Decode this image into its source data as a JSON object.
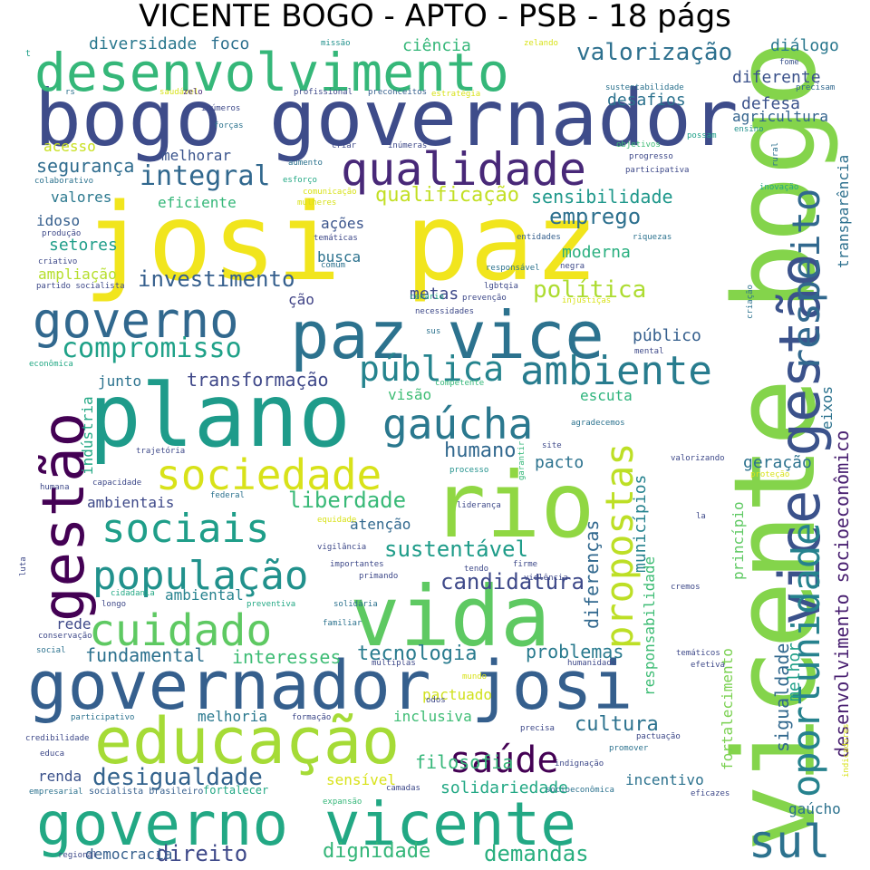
{
  "title": "VICENTE BOGO - APTO - PSB - 18 págs",
  "colormap": "viridis",
  "words": [
    {
      "text": "josi paz",
      "color": "#f1e51d"
    },
    {
      "text": "vicente bogo",
      "color": "#84d44b"
    },
    {
      "text": "bogo governador",
      "color": "#3e4c8a"
    },
    {
      "text": "plano",
      "color": "#1e9b8a"
    },
    {
      "text": "vida",
      "color": "#5ec962"
    },
    {
      "text": "governador josi",
      "color": "#355f8d"
    },
    {
      "text": "desenvolvimento",
      "color": "#35b779"
    },
    {
      "text": "paz vice",
      "color": "#2c728e"
    },
    {
      "text": "rio",
      "color": "#90d743"
    },
    {
      "text": "governo vicente",
      "color": "#22a884"
    },
    {
      "text": "educação",
      "color": "#a5db36"
    },
    {
      "text": "gestão",
      "color": "#440154"
    },
    {
      "text": "vice gestão",
      "color": "#3b528b"
    },
    {
      "text": "governo",
      "color": "#31688e"
    },
    {
      "text": "qualidade",
      "color": "#482878"
    },
    {
      "text": "sociedade",
      "color": "#d8e219"
    },
    {
      "text": "cuidado",
      "color": "#5ec962"
    },
    {
      "text": "população",
      "color": "#21918c"
    },
    {
      "text": "sociais",
      "color": "#1f9e89"
    },
    {
      "text": "gaúcha",
      "color": "#2a788e"
    },
    {
      "text": "ambiente",
      "color": "#287c8e"
    },
    {
      "text": "oportunidade",
      "color": "#26828e"
    },
    {
      "text": "respeito",
      "color": "#31688e"
    },
    {
      "text": "saúde",
      "color": "#440154"
    },
    {
      "text": "sul",
      "color": "#2c728e"
    },
    {
      "text": "propostas",
      "color": "#bddf26"
    },
    {
      "text": "pública",
      "color": "#25848e"
    },
    {
      "text": "compromisso",
      "color": "#1fa188"
    },
    {
      "text": "integral",
      "color": "#31688e"
    },
    {
      "text": "valorização",
      "color": "#2d708e"
    },
    {
      "text": "investimento",
      "color": "#355f8d"
    },
    {
      "text": "política",
      "color": "#addc30"
    },
    {
      "text": "sustentável",
      "color": "#1e9c89"
    },
    {
      "text": "desigualdade",
      "color": "#33638d"
    },
    {
      "text": "liberdade",
      "color": "#38b977"
    },
    {
      "text": "tecnologia",
      "color": "#297b8e"
    },
    {
      "text": "direito",
      "color": "#3e4989"
    },
    {
      "text": "demandas",
      "color": "#29af7f"
    },
    {
      "text": "dignidade",
      "color": "#34b679"
    },
    {
      "text": "fundamental",
      "color": "#2c718e"
    },
    {
      "text": "interesses",
      "color": "#3dbc74"
    },
    {
      "text": "problemas",
      "color": "#297a8e"
    },
    {
      "text": "cultura",
      "color": "#2c728e"
    },
    {
      "text": "filosofia",
      "color": "#35b779"
    },
    {
      "text": "humano",
      "color": "#31688e"
    },
    {
      "text": "emprego",
      "color": "#2d708e"
    },
    {
      "text": "qualificação",
      "color": "#c2df23"
    },
    {
      "text": "sensibilidade",
      "color": "#1f988b"
    },
    {
      "text": "segurança",
      "color": "#2f6c8e"
    },
    {
      "text": "transformação",
      "color": "#3f4889"
    },
    {
      "text": "sigualdade",
      "color": "#31688e"
    },
    {
      "text": "melhor",
      "color": "#1fa088"
    },
    {
      "text": "desenvolvimento socioeconômico",
      "color": "#481f70"
    },
    {
      "text": "municípios",
      "color": "#26828e"
    },
    {
      "text": "responsabilidade",
      "color": "#3dbc74"
    },
    {
      "text": "diferenças",
      "color": "#31688e"
    },
    {
      "text": "princípio",
      "color": "#5ec962"
    },
    {
      "text": "fortalecimento",
      "color": "#7ad151"
    },
    {
      "text": "transparência",
      "color": "#2d708e"
    },
    {
      "text": "indústria",
      "color": "#22a884"
    },
    {
      "text": "diversidade",
      "color": "#2a788e"
    },
    {
      "text": "ciência",
      "color": "#35b779"
    },
    {
      "text": "diálogo",
      "color": "#2a788e"
    },
    {
      "text": "diferente",
      "color": "#3b528b"
    },
    {
      "text": "desafios",
      "color": "#2c728e"
    },
    {
      "text": "defesa",
      "color": "#3b528b"
    },
    {
      "text": "agricultura",
      "color": "#33638d"
    },
    {
      "text": "foco",
      "color": "#2d708e"
    },
    {
      "text": "acesso",
      "color": "#c8e020"
    },
    {
      "text": "melhorar",
      "color": "#3a548c"
    },
    {
      "text": "valores",
      "color": "#2a788e"
    },
    {
      "text": "eficiente",
      "color": "#35b779"
    },
    {
      "text": "idoso",
      "color": "#355f8d"
    },
    {
      "text": "ações",
      "color": "#3a548c"
    },
    {
      "text": "setores",
      "color": "#1f9e89"
    },
    {
      "text": "busca",
      "color": "#2c728e"
    },
    {
      "text": "moderna",
      "color": "#29af7f"
    },
    {
      "text": "metas",
      "color": "#3e4989"
    },
    {
      "text": "público",
      "color": "#355f8d"
    },
    {
      "text": "junto",
      "color": "#2c728e"
    },
    {
      "text": "visão",
      "color": "#3dbc74"
    },
    {
      "text": "escuta",
      "color": "#2fb47c"
    },
    {
      "text": "pacto",
      "color": "#2c728e"
    },
    {
      "text": "geração",
      "color": "#2c728e"
    },
    {
      "text": "ambientais",
      "color": "#3e4989"
    },
    {
      "text": "atenção",
      "color": "#31688e"
    },
    {
      "text": "ambiental",
      "color": "#26828e"
    },
    {
      "text": "rede",
      "color": "#3e4989"
    },
    {
      "text": "melhoria",
      "color": "#2a788e"
    },
    {
      "text": "pactuado",
      "color": "#d0e11c"
    },
    {
      "text": "inclusiva",
      "color": "#3dbc74"
    },
    {
      "text": "solidariedade",
      "color": "#22a884"
    },
    {
      "text": "sensível",
      "color": "#d8e219"
    },
    {
      "text": "incentivo",
      "color": "#2c728e"
    },
    {
      "text": "democracia",
      "color": "#355f8d"
    },
    {
      "text": "renda",
      "color": "#3b528b"
    },
    {
      "text": "gaúcho",
      "color": "#2c728e"
    },
    {
      "text": "eixos",
      "color": "#2c728e"
    },
    {
      "text": "ampliação",
      "color": "#b5de2b"
    },
    {
      "text": "ção",
      "color": "#414487"
    },
    {
      "text": "fortalecer",
      "color": "#22a884"
    },
    {
      "text": "socialista brasileiro",
      "color": "#355f8d"
    },
    {
      "text": "candidatura",
      "color": "#3e4989"
    },
    {
      "text": "t",
      "color": "#1fa088"
    },
    {
      "text": "rs",
      "color": "#2c728e"
    },
    {
      "text": "saudável",
      "color": "#d8e219"
    },
    {
      "text": "zelo",
      "color": "#482878"
    },
    {
      "text": "profissional",
      "color": "#3e4989"
    },
    {
      "text": "preconceitos",
      "color": "#355f8d"
    },
    {
      "text": "estratégia",
      "color": "#d8e219"
    },
    {
      "text": "sustentabilidade",
      "color": "#2c728e"
    },
    {
      "text": "precisam",
      "color": "#31688e"
    },
    {
      "text": "fome",
      "color": "#3b528b"
    },
    {
      "text": "missão",
      "color": "#21918c"
    },
    {
      "text": "zelando",
      "color": "#d8e219"
    },
    {
      "text": "inúmeros",
      "color": "#3e4989"
    },
    {
      "text": "forças",
      "color": "#2c728e"
    },
    {
      "text": "possam",
      "color": "#1fa088"
    },
    {
      "text": "ensino",
      "color": "#21918c"
    },
    {
      "text": "objetivos",
      "color": "#3dbc74"
    },
    {
      "text": "progresso",
      "color": "#3e4989"
    },
    {
      "text": "rural",
      "color": "#2c728e"
    },
    {
      "text": "criar",
      "color": "#3e4989"
    },
    {
      "text": "inúmeras",
      "color": "#3e4989"
    },
    {
      "text": "aumento",
      "color": "#2c728e"
    },
    {
      "text": "esforço",
      "color": "#22a884"
    },
    {
      "text": "comunicação",
      "color": "#d8e219"
    },
    {
      "text": "mulheres",
      "color": "#d8e219"
    },
    {
      "text": "colaborativo",
      "color": "#2c728e"
    },
    {
      "text": "participativa",
      "color": "#3e4989"
    },
    {
      "text": "inovação",
      "color": "#22a884"
    },
    {
      "text": "produção",
      "color": "#3e4989"
    },
    {
      "text": "criativo",
      "color": "#3e4989"
    },
    {
      "text": "temáticas",
      "color": "#3e4989"
    },
    {
      "text": "entidades",
      "color": "#355f8d"
    },
    {
      "text": "riquezas",
      "color": "#2c728e"
    },
    {
      "text": "comum",
      "color": "#2c728e"
    },
    {
      "text": "responsável",
      "color": "#2c728e"
    },
    {
      "text": "negra",
      "color": "#3e4989"
    },
    {
      "text": "partido socialista",
      "color": "#3e4989"
    },
    {
      "text": "cenário",
      "color": "#22a884"
    },
    {
      "text": "lgbtqia",
      "color": "#3e4989"
    },
    {
      "text": "prevenção",
      "color": "#3e4989"
    },
    {
      "text": "injustiças",
      "color": "#d8e219"
    },
    {
      "text": "necessidades",
      "color": "#3e4989"
    },
    {
      "text": "criação",
      "color": "#2c728e"
    },
    {
      "text": "sus",
      "color": "#2c728e"
    },
    {
      "text": "mental",
      "color": "#3e4989"
    },
    {
      "text": "econômica",
      "color": "#22a884"
    },
    {
      "text": "competente",
      "color": "#35b779"
    },
    {
      "text": "agradecemos",
      "color": "#2c728e"
    },
    {
      "text": "site",
      "color": "#3e4989"
    },
    {
      "text": "trajetória",
      "color": "#3e4989"
    },
    {
      "text": "valorizando",
      "color": "#3e4989"
    },
    {
      "text": "proteção",
      "color": "#d8e219"
    },
    {
      "text": "processo",
      "color": "#21918c"
    },
    {
      "text": "garantir",
      "color": "#35b779"
    },
    {
      "text": "capacidade",
      "color": "#3e4989"
    },
    {
      "text": "humana",
      "color": "#3e4989"
    },
    {
      "text": "federal",
      "color": "#2c728e"
    },
    {
      "text": "liderança",
      "color": "#3e4989"
    },
    {
      "text": "equidade",
      "color": "#d8e219"
    },
    {
      "text": "la",
      "color": "#3e4989"
    },
    {
      "text": "luta",
      "color": "#3e4989"
    },
    {
      "text": "vigilância",
      "color": "#3e4989"
    },
    {
      "text": "importantes",
      "color": "#3e4989"
    },
    {
      "text": "tendo",
      "color": "#3e4989"
    },
    {
      "text": "firme",
      "color": "#3e4989"
    },
    {
      "text": "primando",
      "color": "#3e4989"
    },
    {
      "text": "violência",
      "color": "#3e4989"
    },
    {
      "text": "cidadania",
      "color": "#22a884"
    },
    {
      "text": "longo",
      "color": "#3e4989"
    },
    {
      "text": "preventiva",
      "color": "#22a884"
    },
    {
      "text": "solidária",
      "color": "#2c728e"
    },
    {
      "text": "cremos",
      "color": "#3e4989"
    },
    {
      "text": "conservação",
      "color": "#3e4989"
    },
    {
      "text": "familiar",
      "color": "#2c728e"
    },
    {
      "text": "social",
      "color": "#2c728e"
    },
    {
      "text": "múltiplas",
      "color": "#3e4989"
    },
    {
      "text": "humanidade",
      "color": "#3e4989"
    },
    {
      "text": "temáticos",
      "color": "#3e4989"
    },
    {
      "text": "efetiva",
      "color": "#3e4989"
    },
    {
      "text": "mundo",
      "color": "#d8e219"
    },
    {
      "text": "odos",
      "color": "#3e4989"
    },
    {
      "text": "participativo",
      "color": "#2c728e"
    },
    {
      "text": "formação",
      "color": "#3e4989"
    },
    {
      "text": "precisa",
      "color": "#3e4989"
    },
    {
      "text": "pactuação",
      "color": "#3e4989"
    },
    {
      "text": "credibilidade",
      "color": "#3e4989"
    },
    {
      "text": "promover",
      "color": "#2c728e"
    },
    {
      "text": "educa",
      "color": "#3e4989"
    },
    {
      "text": "indignação",
      "color": "#3e4989"
    },
    {
      "text": "indicadores",
      "color": "#d8e219"
    },
    {
      "text": "empresarial",
      "color": "#2c728e"
    },
    {
      "text": "camadas",
      "color": "#3e4989"
    },
    {
      "text": "socioeconômica",
      "color": "#2c728e"
    },
    {
      "text": "eficazes",
      "color": "#3e4989"
    },
    {
      "text": "expansão",
      "color": "#35b779"
    },
    {
      "text": "regional",
      "color": "#3e4989"
    },
    {
      "text": "poucas",
      "color": "#d8e219"
    }
  ]
}
